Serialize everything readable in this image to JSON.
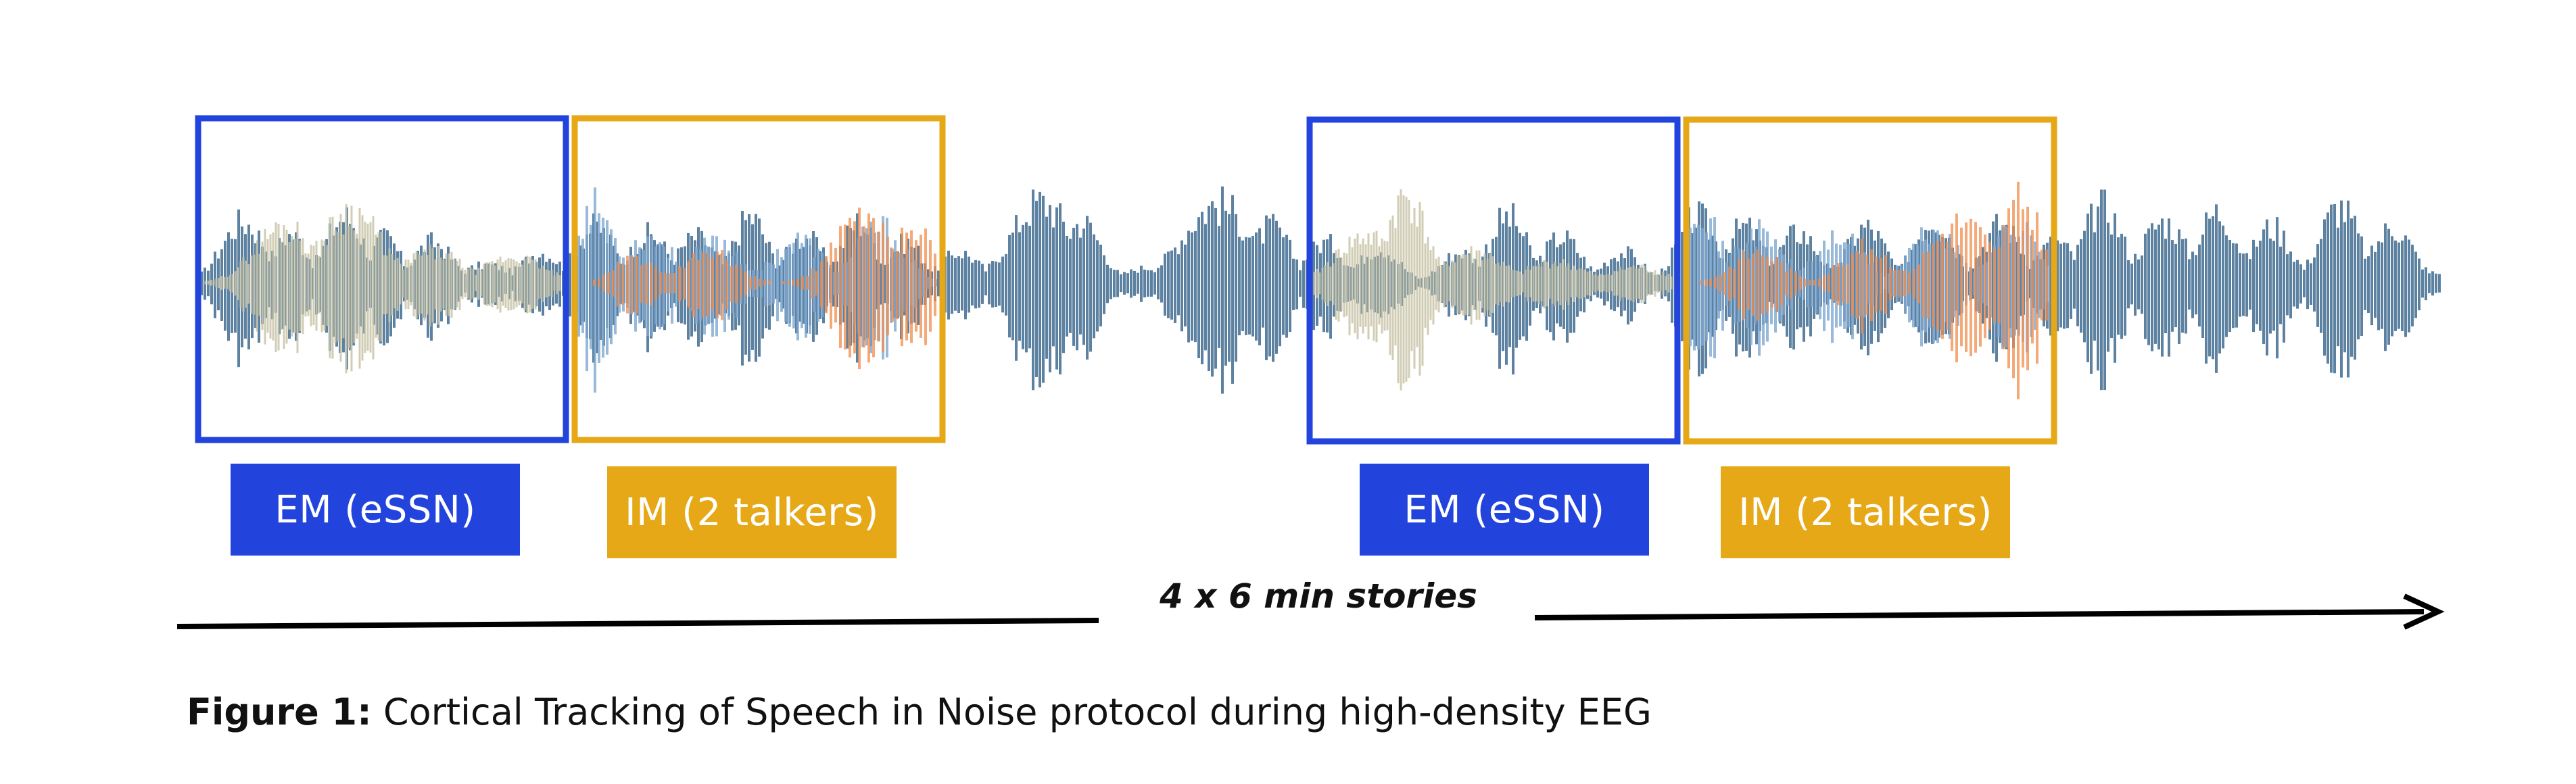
{
  "colors": {
    "em_accent": "#2244dd",
    "im_accent": "#e6a817",
    "target_speech": "#4f7698",
    "essn_noise": "#c9c4a8",
    "talker_1": "#7fa7cf",
    "talker_2": "#f08c4c",
    "arrow": "#000000"
  },
  "conditions": [
    {
      "id": "em-1",
      "label": "EM (eSSN)",
      "kind": "EM"
    },
    {
      "id": "im-1",
      "label": "IM (2 talkers)",
      "kind": "IM"
    },
    {
      "id": "em-2",
      "label": "EM (eSSN)",
      "kind": "EM"
    },
    {
      "id": "im-2",
      "label": "IM (2 talkers)",
      "kind": "IM"
    }
  ],
  "timeline": {
    "label": "4 x 6 min stories",
    "arrow_icon": "arrowhead-icon"
  },
  "caption": {
    "prefix": "Figure 1:",
    "text": " Cortical Tracking of Speech in Noise protocol during high-density EEG"
  }
}
